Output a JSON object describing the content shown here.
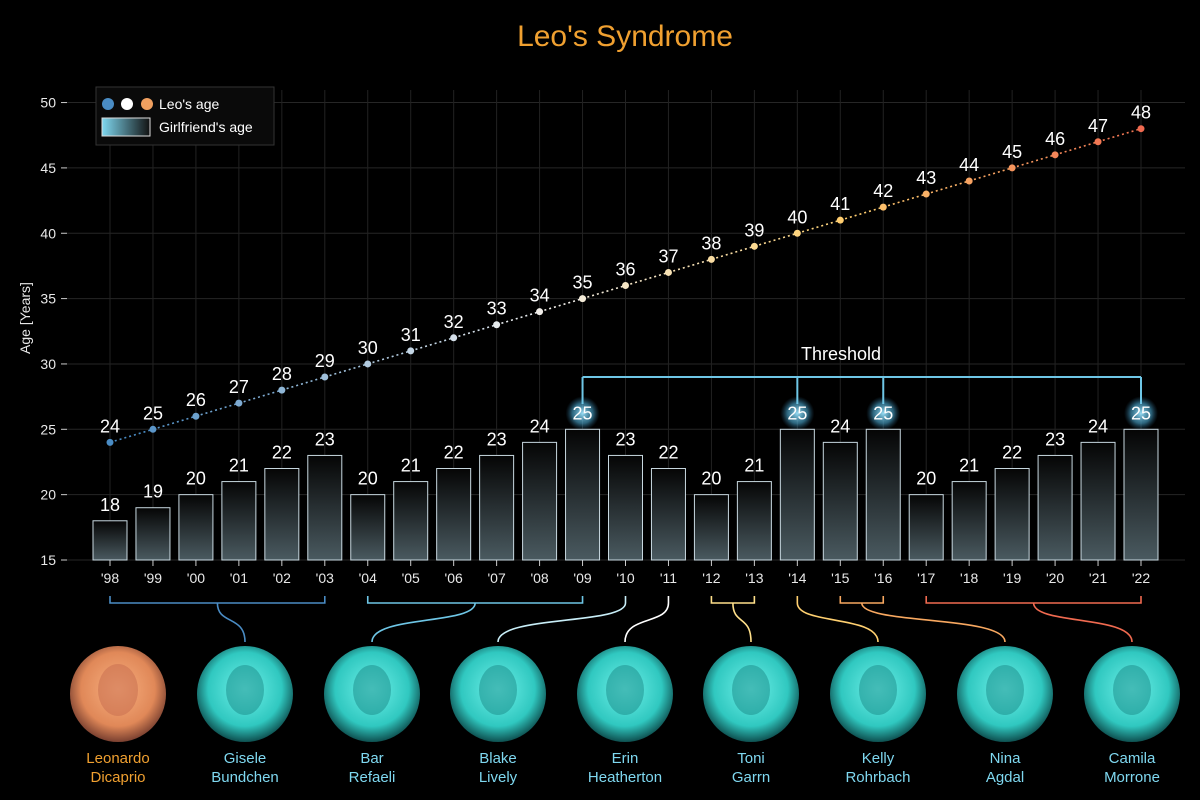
{
  "chart_data": {
    "type": "bar",
    "title": "Leo's Syndrome",
    "ylabel": "Age [Years]",
    "xlabel": "",
    "ylim": [
      15,
      52
    ],
    "yticks": [
      15,
      20,
      25,
      30,
      35,
      40,
      45,
      50
    ],
    "grid": true,
    "legend_placement": "top-left",
    "categories": [
      "'98",
      "'99",
      "'00",
      "'01",
      "'02",
      "'03",
      "'04",
      "'05",
      "'06",
      "'07",
      "'08",
      "'09",
      "'10",
      "'11",
      "'12",
      "'13",
      "'14",
      "'15",
      "'16",
      "'17",
      "'18",
      "'19",
      "'20",
      "'21",
      "'22"
    ],
    "series": [
      {
        "name": "Leo's age",
        "type": "line",
        "values": [
          24,
          25,
          26,
          27,
          28,
          29,
          30,
          31,
          32,
          33,
          34,
          35,
          36,
          37,
          38,
          39,
          40,
          41,
          42,
          43,
          44,
          45,
          46,
          47,
          48
        ]
      },
      {
        "name": "Girlfriend's age",
        "type": "bar",
        "values": [
          18,
          19,
          20,
          21,
          22,
          23,
          20,
          21,
          22,
          23,
          24,
          25,
          23,
          22,
          20,
          21,
          25,
          24,
          25,
          20,
          21,
          22,
          23,
          24,
          25
        ]
      }
    ],
    "threshold": {
      "label": "Threshold",
      "value": 25,
      "marked_years": [
        "'09",
        "'14",
        "'16",
        "'22"
      ]
    },
    "girlfriends": [
      {
        "first": "Gisele",
        "last": "Bundchen",
        "from": "'98",
        "to": "'03"
      },
      {
        "first": "Bar",
        "last": "Refaeli",
        "from": "'04",
        "to": "'09"
      },
      {
        "first": "Blake",
        "last": "Lively",
        "from": "'10",
        "to": "'10"
      },
      {
        "first": "Erin",
        "last": "Heatherton",
        "from": "'11",
        "to": "'11"
      },
      {
        "first": "Toni",
        "last": "Garrn",
        "from": "'12",
        "to": "'13"
      },
      {
        "first": "Kelly",
        "last": "Rohrbach",
        "from": "'14",
        "to": "'14"
      },
      {
        "first": "Nina",
        "last": "Agdal",
        "from": "'15",
        "to": "'16"
      },
      {
        "first": "Camila",
        "last": "Morrone",
        "from": "'17",
        "to": "'22"
      }
    ],
    "leo": {
      "first": "Leonardo",
      "last": "Dicaprio"
    }
  },
  "colors": {
    "title": "#f0a030",
    "leo_name": "#f0a030",
    "girlfriend_name": "#7fd8f0",
    "threshold_line": "#6ec6e6",
    "bar_border": "#c8d8e0",
    "grid": "#2a2a2a",
    "line_gradient": [
      "#4a8cc4",
      "#ffffff",
      "#ffd070",
      "#f06a50"
    ],
    "leo_face": "#f0a070",
    "girlfriend_face": "#3ee0d8"
  }
}
